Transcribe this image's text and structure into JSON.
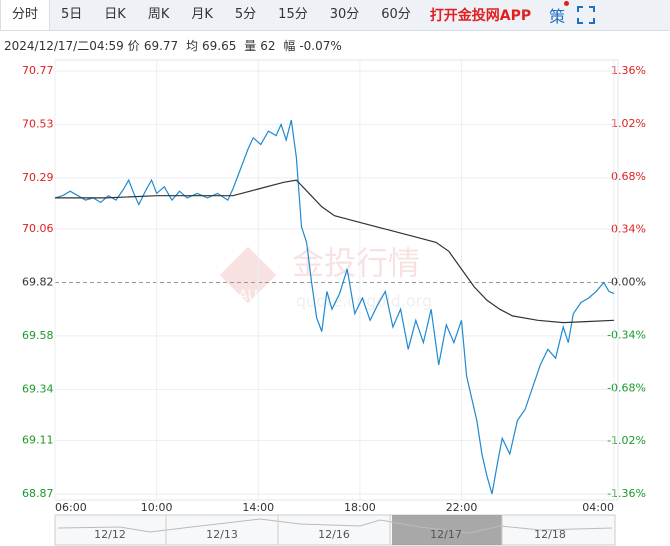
{
  "tabs": [
    "分时",
    "5日",
    "日K",
    "周K",
    "月K",
    "5分",
    "15分",
    "30分",
    "60分"
  ],
  "app_link": "打开金投网APP",
  "strategy_icon": "策",
  "info": {
    "datetime": "2024/12/17/二04:59",
    "price_label": "价",
    "price": "69.77",
    "avg_label": "均",
    "avg": "69.65",
    "volume_label": "量",
    "volume": "62",
    "change_label": "幅",
    "change": "-0.07%"
  },
  "watermark": {
    "brand": "金投行情",
    "url": "quote.cngold.org",
    "badge": "AU"
  },
  "navigator_dates": [
    "12/12",
    "12/13",
    "12/16",
    "12/17",
    "12/18"
  ],
  "chart_data": {
    "type": "line",
    "xlim": [
      0,
      22
    ],
    "xticks": [
      {
        "value": 0,
        "label": "06:00"
      },
      {
        "value": 4,
        "label": "10:00"
      },
      {
        "value": 8,
        "label": "14:00"
      },
      {
        "value": 12,
        "label": "18:00"
      },
      {
        "value": 16,
        "label": "22:00"
      },
      {
        "value": 22,
        "label": "04:00"
      }
    ],
    "ylim": [
      68.87,
      70.77
    ],
    "yticks": [
      {
        "value": 70.77,
        "label": "70.77"
      },
      {
        "value": 70.53,
        "label": "70.53"
      },
      {
        "value": 70.29,
        "label": "70.29"
      },
      {
        "value": 70.06,
        "label": "70.06"
      },
      {
        "value": 69.82,
        "label": "69.82"
      },
      {
        "value": 69.58,
        "label": "69.58"
      },
      {
        "value": 69.34,
        "label": "69.34"
      },
      {
        "value": 69.11,
        "label": "69.11"
      },
      {
        "value": 68.87,
        "label": "68.87"
      }
    ],
    "y2lim": [
      -1.36,
      1.36
    ],
    "y2ticks": [
      {
        "value": 1.36,
        "label": "1.36%"
      },
      {
        "value": 1.02,
        "label": "1.02%"
      },
      {
        "value": 0.68,
        "label": "0.68%"
      },
      {
        "value": 0.34,
        "label": "0.34%"
      },
      {
        "value": 0,
        "label": "0.00%"
      },
      {
        "value": -0.34,
        "label": "-0.34%"
      },
      {
        "value": -0.68,
        "label": "-0.68%"
      },
      {
        "value": -1.02,
        "label": "-1.02%"
      },
      {
        "value": -1.36,
        "label": "-1.36%"
      }
    ],
    "reference": 69.82,
    "up_color": "#e02020",
    "down_color": "#1a9a2a",
    "flat_color": "#333333",
    "grid": true,
    "series": [
      {
        "color": "#1f8ad0",
        "x": [
          0,
          0.3,
          0.6,
          0.9,
          1.2,
          1.5,
          1.8,
          2.1,
          2.4,
          2.7,
          2.9,
          3.1,
          3.3,
          3.6,
          3.8,
          4.0,
          4.3,
          4.6,
          4.9,
          5.2,
          5.6,
          6.0,
          6.4,
          6.8,
          7.0,
          7.3,
          7.6,
          7.8,
          8.1,
          8.4,
          8.7,
          8.9,
          9.1,
          9.3,
          9.5,
          9.7,
          9.9,
          10.1,
          10.3,
          10.5,
          10.7,
          10.9,
          11.2,
          11.5,
          11.8,
          12.1,
          12.4,
          12.7,
          13.0,
          13.3,
          13.6,
          13.9,
          14.2,
          14.5,
          14.8,
          15.1,
          15.4,
          15.7,
          16.0,
          16.2,
          16.4,
          16.6,
          16.8,
          17.0,
          17.2,
          17.4,
          17.6,
          17.9,
          18.2,
          18.5,
          18.8,
          19.1,
          19.4,
          19.7,
          20.0,
          20.2,
          20.4,
          20.7,
          21.0,
          21.3,
          21.6,
          21.8,
          22.0
        ],
        "values": [
          70.2,
          70.21,
          70.23,
          70.21,
          70.19,
          70.2,
          70.18,
          70.21,
          70.19,
          70.24,
          70.28,
          70.22,
          70.17,
          70.24,
          70.28,
          70.22,
          70.25,
          70.19,
          70.23,
          70.2,
          70.22,
          70.2,
          70.22,
          70.19,
          70.24,
          70.33,
          70.42,
          70.47,
          70.44,
          70.5,
          70.48,
          70.53,
          70.46,
          70.55,
          70.38,
          70.07,
          70.0,
          69.82,
          69.66,
          69.6,
          69.78,
          69.7,
          69.77,
          69.88,
          69.68,
          69.75,
          69.65,
          69.72,
          69.78,
          69.62,
          69.7,
          69.52,
          69.65,
          69.55,
          69.7,
          69.45,
          69.63,
          69.55,
          69.65,
          69.4,
          69.3,
          69.2,
          69.05,
          68.95,
          68.87,
          69.0,
          69.12,
          69.05,
          69.2,
          69.25,
          69.35,
          69.45,
          69.52,
          69.48,
          69.62,
          69.55,
          69.68,
          69.73,
          69.75,
          69.78,
          69.82,
          69.78,
          69.77
        ]
      },
      {
        "color": "#333333",
        "x": [
          0,
          2,
          4,
          6,
          7,
          8,
          9,
          9.5,
          10,
          10.5,
          11,
          12,
          13,
          14,
          15,
          15.5,
          16,
          16.5,
          17,
          17.5,
          18,
          19,
          20,
          21,
          22
        ],
        "values": [
          70.2,
          70.2,
          70.21,
          70.21,
          70.21,
          70.24,
          70.27,
          70.28,
          70.22,
          70.16,
          70.12,
          70.09,
          70.06,
          70.03,
          70.0,
          69.96,
          69.88,
          69.8,
          69.74,
          69.7,
          69.67,
          69.65,
          69.64,
          69.645,
          69.65
        ]
      }
    ]
  }
}
